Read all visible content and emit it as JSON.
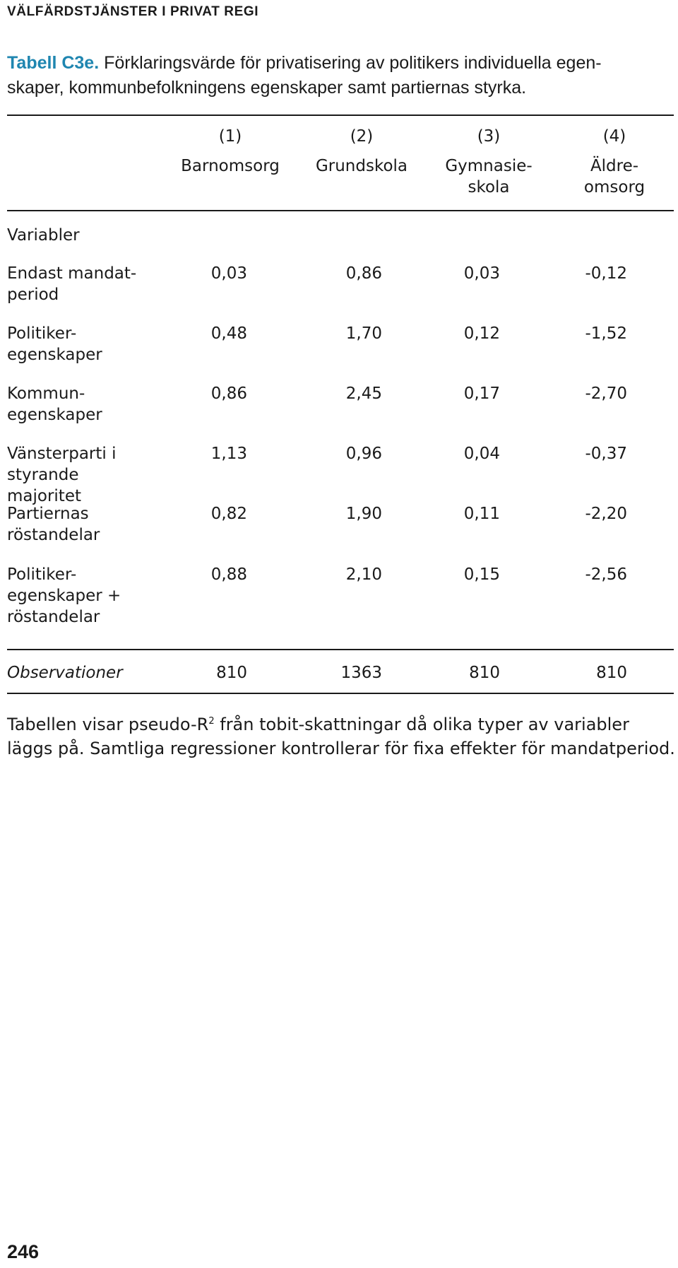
{
  "header": {
    "running_title": "VÄLFÄRDSTJÄNSTER I PRIVAT REGI"
  },
  "caption": {
    "label": "Tabell C3e.",
    "text_line1": " Förklaringsvärde för privatisering av politikers individuella egen-",
    "text_line2": "skaper, kommunbefolkningens egenskaper samt partiernas styrka."
  },
  "table": {
    "column_numbers": [
      "(1)",
      "(2)",
      "(3)",
      "(4)"
    ],
    "column_names": [
      [
        "Barnomsorg"
      ],
      [
        "Grundskola"
      ],
      [
        "Gymnasie-",
        "skola"
      ],
      [
        "Äldre-",
        "omsorg"
      ]
    ],
    "section_label": "Variabler",
    "rows": [
      {
        "label": [
          "Endast mandat-",
          "period"
        ],
        "values": [
          "0,03",
          "0,86",
          "0,03",
          "-0,12"
        ]
      },
      {
        "label": [
          "Politiker-",
          "egenskaper"
        ],
        "values": [
          "0,48",
          "1,70",
          "0,12",
          "-1,52"
        ]
      },
      {
        "label": [
          "Kommun-",
          "egenskaper"
        ],
        "values": [
          "0,86",
          "2,45",
          "0,17",
          "-2,70"
        ]
      },
      {
        "label": [
          "Vänsterparti i",
          "styrande majoritet"
        ],
        "values": [
          "1,13",
          "0,96",
          "0,04",
          "-0,37"
        ]
      },
      {
        "label": [
          "Partiernas",
          "röstandelar"
        ],
        "values": [
          "0,82",
          "1,90",
          "0,11",
          "-2,20"
        ]
      },
      {
        "label": [
          "Politiker-",
          "egenskaper +",
          "röstandelar"
        ],
        "values": [
          "0,88",
          "2,10",
          "0,15",
          "-2,56"
        ]
      }
    ],
    "observations": {
      "label": "Observationer",
      "values": [
        "810",
        "1363",
        "810",
        "810"
      ]
    }
  },
  "note": {
    "part1": "Tabellen visar pseudo-R",
    "superscript": "2",
    "part2": " från tobit-skattningar då olika typer av variabler läggs på. Samtliga regressioner kontrollerar för fixa effekter för mandatperiod."
  },
  "footer": {
    "page_number": "246"
  }
}
